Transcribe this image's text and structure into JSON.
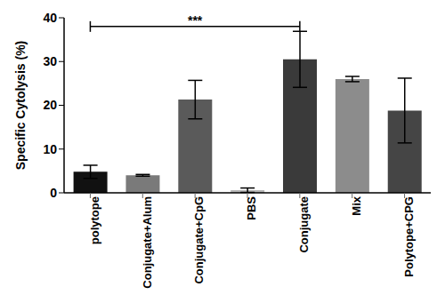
{
  "chart_data": {
    "type": "bar",
    "y_label": "Specific Cytolysis (%)",
    "categories": [
      "polytope",
      "Conjugate+Alum",
      "Conjugate+CpG",
      "PBS",
      "Conjugate",
      "Mix",
      "Polytope+CPG"
    ],
    "values": [
      4.8,
      4.0,
      21.3,
      0.6,
      30.5,
      26.0,
      18.8
    ],
    "errors": [
      1.5,
      0.2,
      4.4,
      0.5,
      6.4,
      0.6,
      7.4
    ],
    "colors": [
      "#111111",
      "#7a7a7a",
      "#5a5a5a",
      "#b5b5b5",
      "#3a3a3a",
      "#8c8c8c",
      "#454545"
    ],
    "ylim": [
      0,
      40
    ],
    "yticks": [
      0,
      10,
      20,
      30,
      40
    ],
    "grid": false,
    "annotations": [
      {
        "text": "***",
        "from": "polytope",
        "to": "Conjugate",
        "y": 38
      }
    ]
  }
}
